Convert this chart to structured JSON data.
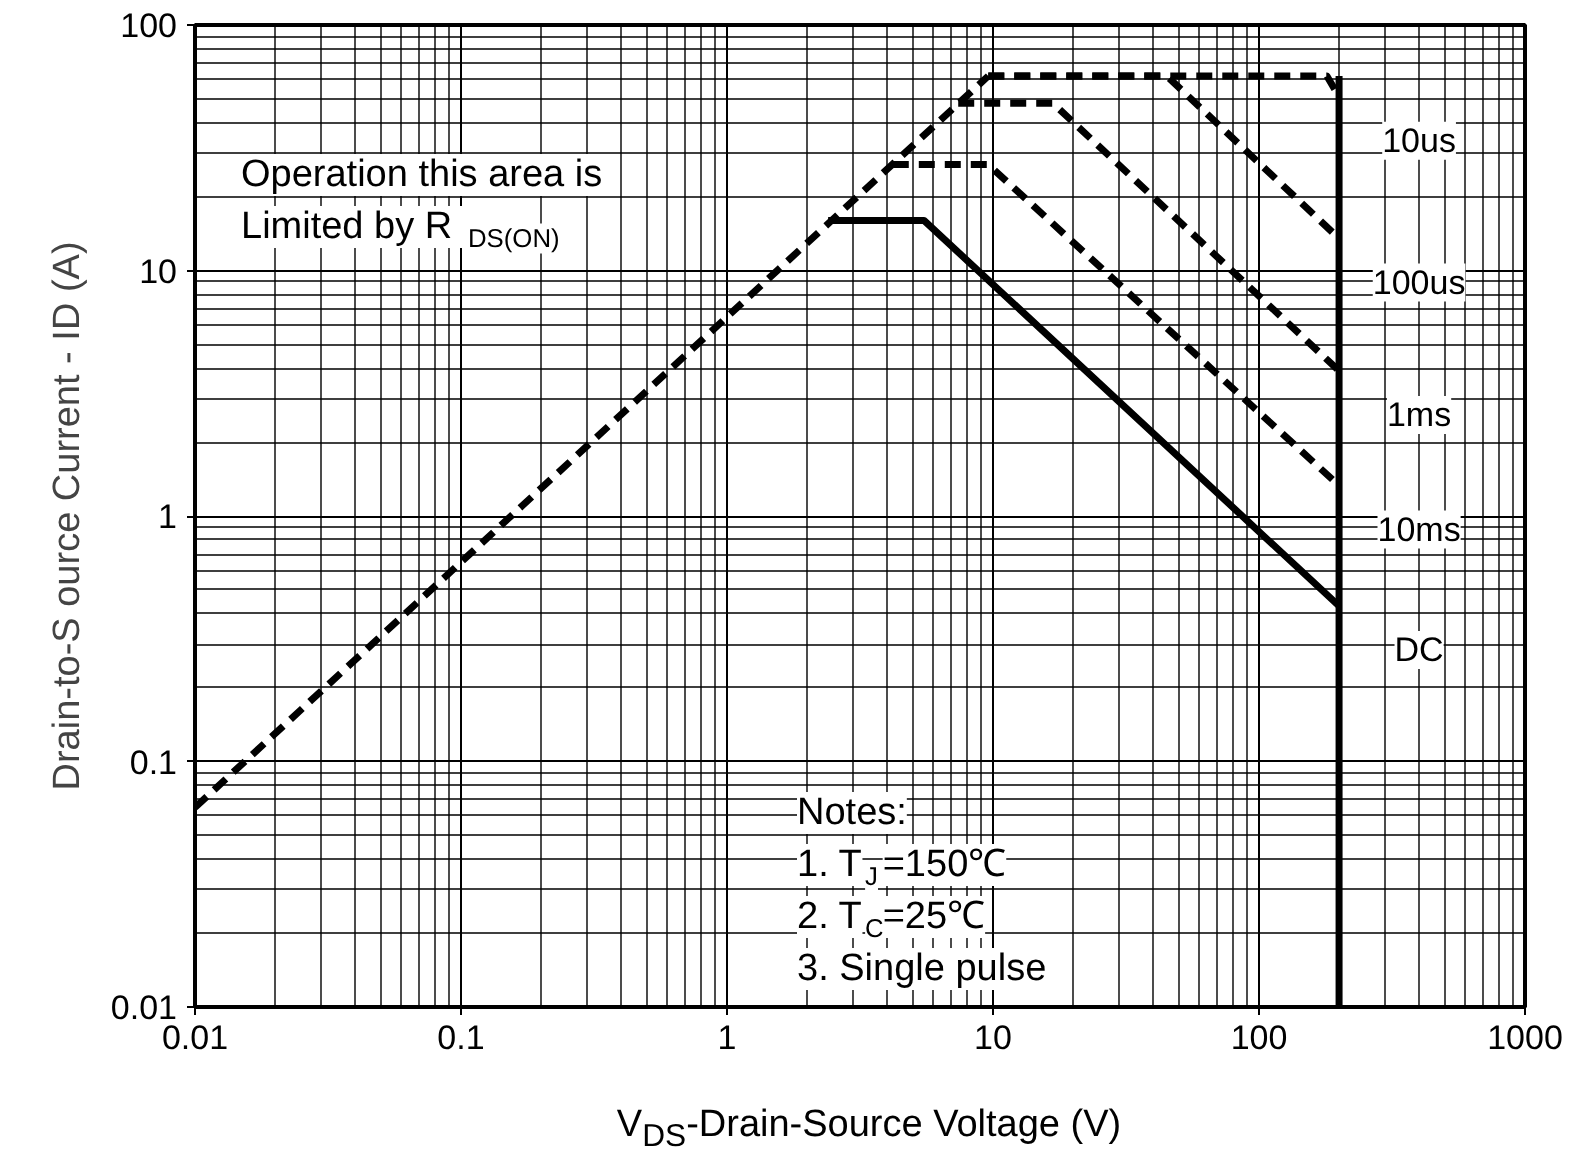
{
  "chart_data": {
    "type": "line",
    "xlabel": "V$_{DS}$-Drain-Source Voltage (V)",
    "ylabel": "Drain-to-S ource Current - ID (A)",
    "log": "xy",
    "xlim": [
      0.01,
      1000
    ],
    "ylim": [
      0.01,
      100
    ],
    "xticks": [
      0.01,
      0.1,
      1,
      10,
      100,
      1000
    ],
    "yticks": [
      0.01,
      0.1,
      1,
      10,
      100
    ],
    "grid": true,
    "annotations": [
      "Operation this area is\nLimited  by R$_{DS(ON)}$",
      "Notes:\n1. T$_{J}$=150℃\n2. T$_{C}$=25℃\n3. Single pulse"
    ],
    "series": [
      {
        "color": "#000000",
        "line_style": "dashed",
        "x": [
          0.01,
          9.6
        ],
        "values": [
          0.065,
          62
        ]
      },
      {
        "name": "10us",
        "color": "#000000",
        "line_style": "dashed",
        "x": [
          9.6,
          180,
          200
        ],
        "values": [
          62,
          62,
          51
        ]
      },
      {
        "name": "100us",
        "color": "#000000",
        "line_style": "dashed",
        "x": [
          9.6,
          45,
          200
        ],
        "values": [
          62,
          62,
          13.5
        ]
      },
      {
        "name": "1ms",
        "color": "#000000",
        "line_style": "dashed",
        "x": [
          7.4,
          16.8,
          200
        ],
        "values": [
          48,
          48,
          3.9
        ]
      },
      {
        "name": "10ms",
        "color": "#000000",
        "line_style": "dashed",
        "x": [
          4.2,
          9.6,
          200
        ],
        "values": [
          27,
          27,
          1.33
        ]
      },
      {
        "name": "DC",
        "color": "#000000",
        "line_style": "solid",
        "x": [
          2.4,
          5.5,
          200
        ],
        "values": [
          16,
          16,
          0.43
        ]
      },
      {
        "color": "#000000",
        "line_style": "solid",
        "x": [
          200,
          200
        ],
        "values": [
          62,
          0.01
        ]
      }
    ]
  }
}
